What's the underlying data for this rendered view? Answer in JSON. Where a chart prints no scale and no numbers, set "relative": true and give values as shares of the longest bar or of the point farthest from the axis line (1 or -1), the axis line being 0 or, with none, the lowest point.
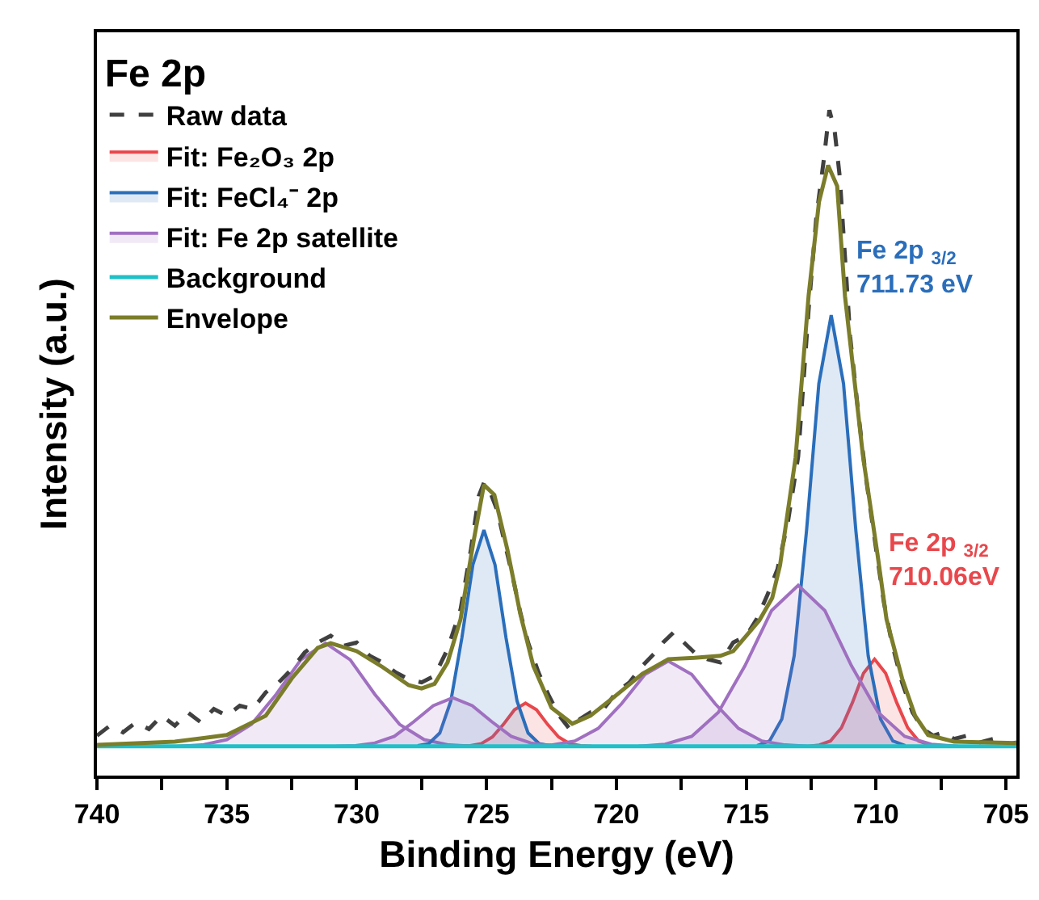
{
  "chart_data": {
    "type": "line",
    "relative": true,
    "xlabel": "Binding Energy (eV)",
    "ylabel": "Intensity (a.u.)",
    "legend_title": "Fe 2p",
    "legend": "top left",
    "marker": "none",
    "xlim": [
      740,
      704.6
    ],
    "xticks": [
      740,
      {
        "value": 737.5,
        "label": null
      },
      735,
      {
        "value": 732.5,
        "label": null
      },
      730,
      {
        "value": 727.5,
        "label": null
      },
      725,
      {
        "value": 722.5,
        "label": null
      },
      720,
      {
        "value": 717.5,
        "label": null
      },
      715,
      {
        "value": 712.5,
        "label": null
      },
      710,
      {
        "value": 707.5,
        "label": null
      },
      705
    ],
    "annotations": [
      {
        "text": "Fe 2p $_{3/2}$\n711.73 eV",
        "x": 711.73,
        "y": 0.692
      },
      {
        "text": "Fe 2p $_{3/2}$\n710.06eV",
        "x": 710.06,
        "y": 0.175
      }
    ],
    "series": [
      {
        "name": "Raw data",
        "line_style": "dashed",
        "color": "#404040",
        "x": [
          740,
          739.5,
          739,
          738.5,
          738,
          737.5,
          737,
          736.5,
          736,
          735.5,
          735,
          734.5,
          734,
          733.5,
          733,
          732.5,
          732,
          731.5,
          731,
          730.5,
          730,
          729.5,
          729,
          728.5,
          728,
          727.5,
          727,
          726.5,
          726,
          725.6,
          725.3,
          725.1,
          724.9,
          724.6,
          724.3,
          724,
          723.7,
          723.4,
          723,
          722.6,
          722.2,
          721.8,
          721.4,
          721,
          720.5,
          720,
          719.5,
          719,
          718.5,
          718.2,
          717.8,
          717.4,
          717,
          716.5,
          716,
          715.5,
          715,
          714.6,
          714.2,
          713.8,
          713.4,
          713,
          712.6,
          712.3,
          712,
          711.8,
          711.6,
          711.4,
          711.2,
          711,
          710.7,
          710.4,
          710,
          709.7,
          709.4,
          709,
          708.6,
          708.2,
          707.8,
          707.4,
          707,
          706.5,
          706,
          705.5,
          705,
          704.6
        ],
        "values": [
          0.06,
          0.075,
          0.065,
          0.08,
          0.07,
          0.09,
          0.075,
          0.095,
          0.08,
          0.1,
          0.09,
          0.105,
          0.1,
          0.125,
          0.14,
          0.16,
          0.185,
          0.2,
          0.21,
          0.195,
          0.2,
          0.18,
          0.17,
          0.155,
          0.145,
          0.14,
          0.15,
          0.19,
          0.25,
          0.34,
          0.42,
          0.44,
          0.43,
          0.4,
          0.35,
          0.3,
          0.245,
          0.2,
          0.155,
          0.12,
          0.09,
          0.07,
          0.085,
          0.095,
          0.1,
          0.125,
          0.14,
          0.165,
          0.185,
          0.2,
          0.215,
          0.2,
          0.185,
          0.175,
          0.17,
          0.2,
          0.21,
          0.235,
          0.27,
          0.31,
          0.38,
          0.48,
          0.7,
          0.84,
          0.93,
          1.0,
          0.97,
          0.9,
          0.78,
          0.66,
          0.55,
          0.45,
          0.34,
          0.26,
          0.2,
          0.14,
          0.095,
          0.07,
          0.06,
          0.065,
          0.055,
          0.06,
          0.05,
          0.055,
          0.045,
          0.05
        ]
      },
      {
        "name": "Fit: Fe₂O₃ 2p",
        "type": "area",
        "color": "#e8474c",
        "x": [
          712.61,
          712.185,
          711.76,
          711.335,
          710.91,
          710.485,
          710.06,
          709.635,
          709.21,
          708.785,
          708.36,
          707.935,
          707.51
        ],
        "values": [
          0.044,
          0.046,
          0.052,
          0.072,
          0.11,
          0.154,
          0.175,
          0.154,
          0.11,
          0.072,
          0.052,
          0.046,
          0.044
        ]
      },
      {
        "name": "Fit: FeCl₄⁻ 2p",
        "type": "area",
        "color": "#2a6ebb",
        "x": [
          714.58,
          714.105,
          713.63,
          713.155,
          712.68,
          712.205,
          711.73,
          711.255,
          710.78,
          710.305,
          709.83,
          709.355,
          708.88
        ],
        "values": [
          0.045,
          0.052,
          0.085,
          0.18,
          0.368,
          0.589,
          0.692,
          0.589,
          0.368,
          0.18,
          0.085,
          0.052,
          0.045
        ]
      },
      {
        "name": "Fit: Fe 2p satellite",
        "type": "area",
        "color": "#a070c0",
        "x": [
          736.9,
          735.95,
          735.0,
          734.05,
          733.1,
          732.15,
          731.2,
          730.25,
          729.3,
          728.35,
          727.4,
          726.45,
          725.5
        ],
        "values": [
          0.044,
          0.046,
          0.054,
          0.077,
          0.122,
          0.174,
          0.199,
          0.174,
          0.122,
          0.077,
          0.054,
          0.046,
          0.044
        ]
      },
      {
        "name": "Background",
        "color": "#20c0c8",
        "x": [
          740,
          704.6
        ],
        "values": [
          0.044,
          0.044
        ]
      },
      {
        "name": "Envelope",
        "color": "#7b7d2a",
        "x": [
          740,
          737,
          735,
          733.5,
          732.5,
          731.5,
          731,
          730,
          729,
          728,
          727.5,
          727,
          726.5,
          726,
          725.5,
          725.1,
          724.7,
          724.2,
          723.7,
          723.2,
          722.5,
          721.7,
          721,
          720,
          719,
          718,
          717,
          716,
          715.5,
          714.5,
          714,
          713.7,
          713.1,
          712.6,
          712.2,
          711.85,
          711.5,
          711.2,
          710.5,
          709.95,
          709.6,
          709,
          708.5,
          708,
          707,
          704.6
        ],
        "values": [
          0.046,
          0.051,
          0.061,
          0.09,
          0.146,
          0.192,
          0.199,
          0.187,
          0.163,
          0.136,
          0.131,
          0.138,
          0.17,
          0.235,
          0.352,
          0.437,
          0.422,
          0.34,
          0.243,
          0.165,
          0.102,
          0.078,
          0.09,
          0.121,
          0.153,
          0.175,
          0.177,
          0.18,
          0.187,
          0.233,
          0.267,
          0.316,
          0.478,
          0.721,
          0.862,
          0.917,
          0.886,
          0.721,
          0.478,
          0.333,
          0.235,
          0.146,
          0.09,
          0.061,
          0.051,
          0.049
        ]
      },
      {
        "type": "area",
        "color": "#e8474c",
        "x": [
          726.05,
          725.625,
          725.2,
          724.775,
          724.35,
          723.925,
          723.5,
          723.075,
          722.65,
          722.225,
          721.8,
          721.375,
          720.95
        ],
        "values": [
          0.044,
          0.045,
          0.048,
          0.058,
          0.077,
          0.099,
          0.109,
          0.099,
          0.077,
          0.058,
          0.048,
          0.045,
          0.044
        ]
      },
      {
        "type": "area",
        "color": "#2a6ebb",
        "x": [
          727.65,
          727.225,
          726.8,
          726.375,
          725.95,
          725.525,
          725.1,
          724.675,
          724.25,
          723.825,
          723.4,
          722.975,
          722.55
        ],
        "values": [
          0.045,
          0.048,
          0.064,
          0.112,
          0.207,
          0.317,
          0.369,
          0.317,
          0.207,
          0.112,
          0.064,
          0.048,
          0.045
        ]
      },
      {
        "type": "area",
        "color": "#a070c0",
        "x": [
          730.8,
          730.05,
          729.3,
          728.55,
          727.8,
          727.05,
          726.3,
          725.55,
          724.8,
          724.05,
          723.3,
          722.55,
          721.8
        ],
        "values": [
          0.044,
          0.045,
          0.049,
          0.059,
          0.081,
          0.105,
          0.117,
          0.105,
          0.081,
          0.059,
          0.049,
          0.045,
          0.044
        ]
      },
      {
        "type": "area",
        "color": "#a070c0",
        "x": [
          723.4,
          722.5,
          721.6,
          720.7,
          719.8,
          718.9,
          718.0,
          717.1,
          716.2,
          715.3,
          714.4,
          713.5,
          712.6
        ],
        "values": [
          0.044,
          0.046,
          0.052,
          0.071,
          0.108,
          0.152,
          0.172,
          0.152,
          0.108,
          0.071,
          0.052,
          0.046,
          0.044
        ]
      },
      {
        "type": "area",
        "color": "#a070c0",
        "x": [
          719.15,
          718.125,
          717.1,
          716.075,
          715.05,
          714.025,
          713.0,
          711.975,
          710.95,
          709.925,
          708.9,
          707.875,
          706.85
        ],
        "values": [
          0.044,
          0.047,
          0.059,
          0.095,
          0.165,
          0.248,
          0.286,
          0.248,
          0.165,
          0.095,
          0.059,
          0.047,
          0.044
        ]
      }
    ]
  }
}
